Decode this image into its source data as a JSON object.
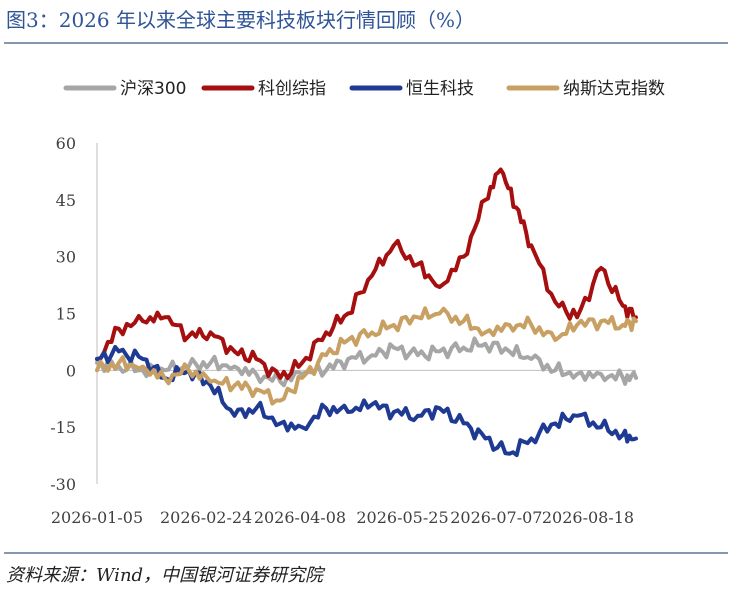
{
  "title": "图3：2026 年以来全球主要科技板块行情回顾（%）",
  "source": "资料来源：Wind，中国银河证券研究院",
  "chart_data": {
    "type": "line",
    "title": "",
    "xlabel": "",
    "ylabel": "",
    "ylim": [
      -30,
      60
    ],
    "yticks": [
      -30,
      -15,
      0,
      15,
      30,
      45,
      60
    ],
    "xlim": [
      "2026-01-05",
      "2026-09-09"
    ],
    "xticks": [
      "2026-01-05",
      "2026-02-24",
      "2026-04-08",
      "2026-05-25",
      "2026-07-07",
      "2026-08-18"
    ],
    "grid": false,
    "legend": "top",
    "series": [
      {
        "name": "沪深300",
        "color": "#a6a6a6",
        "x": [
          "2026-01-05",
          "2026-01-15",
          "2026-01-26",
          "2026-02-05",
          "2026-02-16",
          "2026-02-26",
          "2026-03-09",
          "2026-03-19",
          "2026-03-30",
          "2026-04-09",
          "2026-04-20",
          "2026-04-30",
          "2026-05-11",
          "2026-05-21",
          "2026-06-01",
          "2026-06-11",
          "2026-06-22",
          "2026-07-02",
          "2026-07-13",
          "2026-07-23",
          "2026-08-03",
          "2026-08-13",
          "2026-08-24",
          "2026-09-03",
          "2026-09-09"
        ],
        "values": [
          2,
          1,
          0,
          0,
          1,
          2,
          1,
          -1,
          -3,
          -1,
          0,
          3,
          4,
          6,
          4,
          5,
          6,
          7,
          5,
          3,
          0,
          -1,
          -1,
          -2,
          -2
        ]
      },
      {
        "name": "科创综指",
        "color": "#a50f0f",
        "x": [
          "2026-01-05",
          "2026-01-15",
          "2026-01-26",
          "2026-02-05",
          "2026-02-16",
          "2026-02-26",
          "2026-03-09",
          "2026-03-19",
          "2026-03-30",
          "2026-04-09",
          "2026-04-20",
          "2026-04-30",
          "2026-05-11",
          "2026-05-21",
          "2026-06-01",
          "2026-06-11",
          "2026-06-22",
          "2026-07-02",
          "2026-07-09",
          "2026-07-16",
          "2026-07-23",
          "2026-08-03",
          "2026-08-13",
          "2026-08-24",
          "2026-09-03",
          "2026-09-09"
        ],
        "values": [
          3,
          11,
          13,
          14,
          9,
          10,
          5,
          3,
          -2,
          2,
          10,
          15,
          25,
          33,
          28,
          22,
          30,
          45,
          53,
          43,
          33,
          18,
          14,
          27,
          17,
          14
        ]
      },
      {
        "name": "恒生科技",
        "color": "#1f3a93",
        "x": [
          "2026-01-05",
          "2026-01-15",
          "2026-01-26",
          "2026-02-05",
          "2026-02-16",
          "2026-02-26",
          "2026-03-09",
          "2026-03-19",
          "2026-03-30",
          "2026-04-09",
          "2026-04-20",
          "2026-04-30",
          "2026-05-11",
          "2026-05-21",
          "2026-06-01",
          "2026-06-11",
          "2026-06-22",
          "2026-07-02",
          "2026-07-13",
          "2026-07-23",
          "2026-08-03",
          "2026-08-13",
          "2026-08-24",
          "2026-09-03",
          "2026-09-09"
        ],
        "values": [
          3,
          5,
          3,
          -2,
          0,
          -4,
          -12,
          -10,
          -14,
          -15,
          -10,
          -11,
          -9,
          -11,
          -12,
          -10,
          -14,
          -18,
          -22,
          -18,
          -14,
          -12,
          -15,
          -17,
          -18
        ]
      },
      {
        "name": "纳斯达克指数",
        "color": "#c8a063",
        "x": [
          "2026-01-05",
          "2026-01-15",
          "2026-01-26",
          "2026-02-05",
          "2026-02-16",
          "2026-02-26",
          "2026-03-09",
          "2026-03-19",
          "2026-03-30",
          "2026-04-09",
          "2026-04-20",
          "2026-04-30",
          "2026-05-11",
          "2026-05-21",
          "2026-06-01",
          "2026-06-11",
          "2026-06-22",
          "2026-07-02",
          "2026-07-13",
          "2026-07-23",
          "2026-08-03",
          "2026-08-13",
          "2026-08-24",
          "2026-09-03",
          "2026-09-09"
        ],
        "values": [
          0,
          2,
          1,
          -2,
          0,
          -3,
          -4,
          -5,
          -8,
          -2,
          4,
          8,
          10,
          12,
          14,
          15,
          13,
          10,
          12,
          12,
          8,
          12,
          13,
          12,
          13
        ]
      }
    ]
  }
}
